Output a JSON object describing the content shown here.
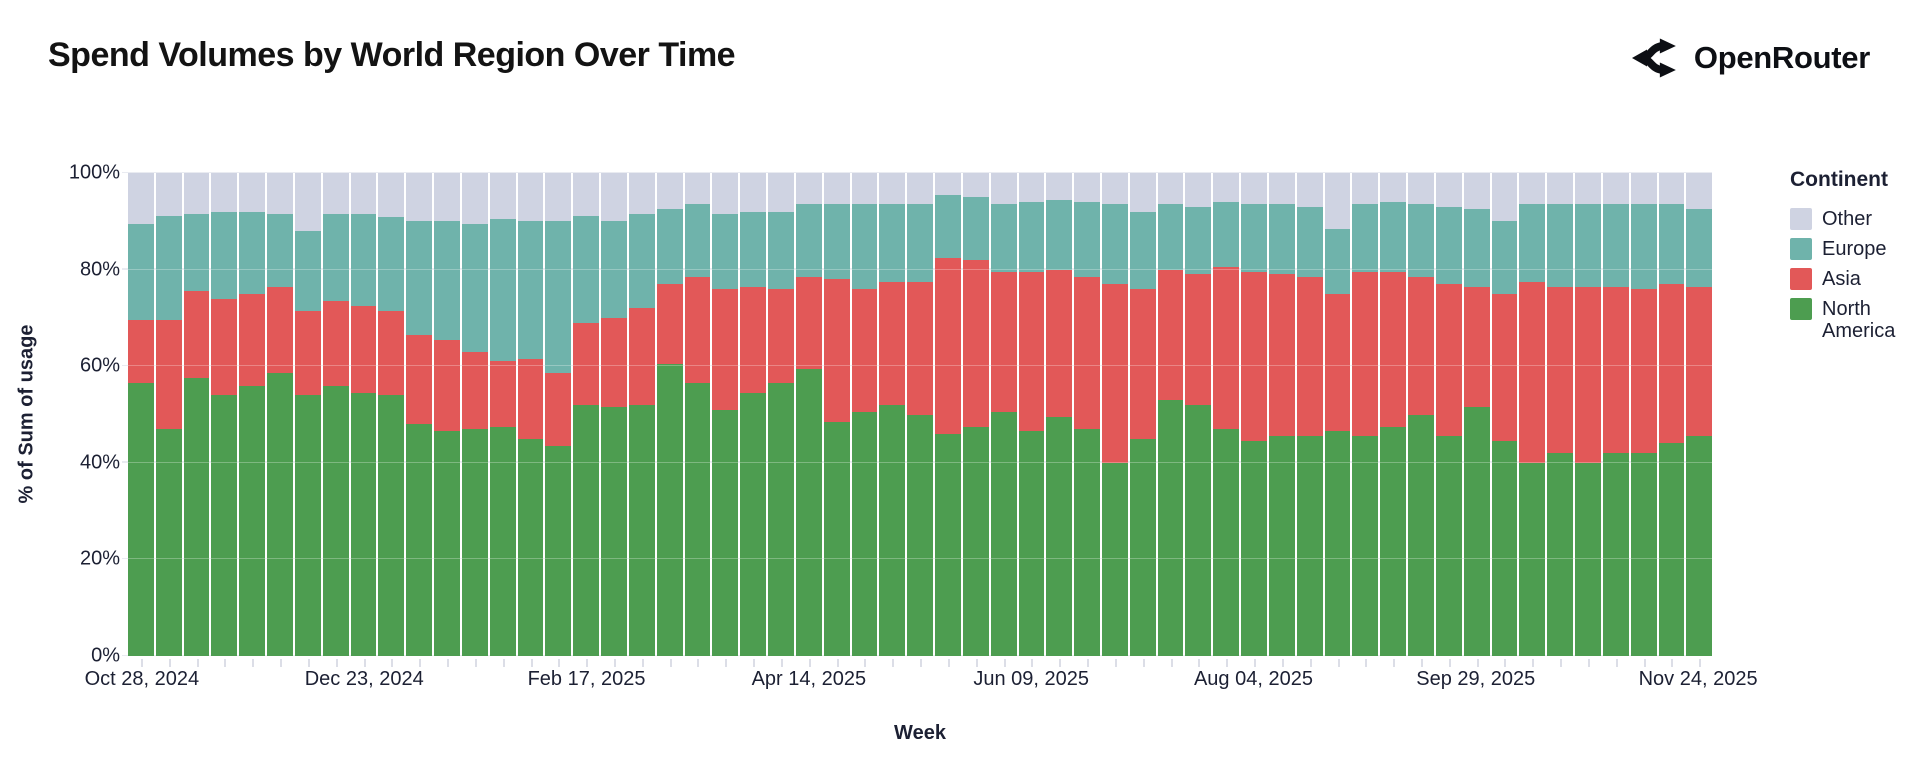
{
  "header": {
    "title": "Spend Volumes by World Region Over Time",
    "brand": "OpenRouter"
  },
  "chart_data": {
    "type": "bar",
    "stacked": true,
    "normalized_percent": true,
    "title": "Spend Volumes by World Region Over Time",
    "xlabel": "Week",
    "ylabel": "% of Sum of usage",
    "ylim": [
      0,
      100
    ],
    "grid": true,
    "y_ticks": [
      "0%",
      "20%",
      "40%",
      "60%",
      "80%",
      "100%"
    ],
    "x_tick_indices": [
      0,
      8,
      16,
      24,
      32,
      40,
      48,
      56
    ],
    "x_tick_labels": [
      "Oct 28, 2024",
      "Dec 23, 2024",
      "Feb 17, 2025",
      "Apr 14, 2025",
      "Jun 09, 2025",
      "Aug 04, 2025",
      "Sep 29, 2025",
      "Nov 24, 2025"
    ],
    "categories": [
      "Oct 28, 2024",
      "Nov 04, 2024",
      "Nov 11, 2024",
      "Nov 18, 2024",
      "Nov 25, 2024",
      "Dec 02, 2024",
      "Dec 09, 2024",
      "Dec 16, 2024",
      "Dec 23, 2024",
      "Dec 30, 2024",
      "Jan 06, 2025",
      "Jan 13, 2025",
      "Jan 20, 2025",
      "Jan 27, 2025",
      "Feb 03, 2025",
      "Feb 10, 2025",
      "Feb 17, 2025",
      "Feb 24, 2025",
      "Mar 03, 2025",
      "Mar 10, 2025",
      "Mar 17, 2025",
      "Mar 24, 2025",
      "Mar 31, 2025",
      "Apr 07, 2025",
      "Apr 14, 2025",
      "Apr 21, 2025",
      "Apr 28, 2025",
      "May 05, 2025",
      "May 12, 2025",
      "May 19, 2025",
      "May 26, 2025",
      "Jun 02, 2025",
      "Jun 09, 2025",
      "Jun 16, 2025",
      "Jun 23, 2025",
      "Jun 30, 2025",
      "Jul 07, 2025",
      "Jul 14, 2025",
      "Jul 21, 2025",
      "Jul 28, 2025",
      "Aug 04, 2025",
      "Aug 11, 2025",
      "Aug 18, 2025",
      "Aug 25, 2025",
      "Sep 01, 2025",
      "Sep 08, 2025",
      "Sep 15, 2025",
      "Sep 22, 2025",
      "Sep 29, 2025",
      "Oct 06, 2025",
      "Oct 13, 2025",
      "Oct 20, 2025",
      "Oct 27, 2025",
      "Nov 03, 2025",
      "Nov 10, 2025",
      "Nov 17, 2025",
      "Nov 24, 2025"
    ],
    "series": [
      {
        "name": "North America",
        "color": "#4d9d50",
        "values": [
          56.5,
          47,
          57.5,
          54,
          56,
          58.5,
          54,
          56,
          54.5,
          54,
          48,
          46.5,
          47,
          47.5,
          45,
          43.5,
          52,
          51.5,
          52,
          60.5,
          56.5,
          51,
          54.5,
          56.5,
          59.5,
          48.5,
          50.5,
          52,
          50,
          46,
          47.5,
          50.5,
          46.5,
          49.5,
          47,
          40,
          45,
          53,
          52,
          47,
          44.5,
          45.5,
          45.5,
          46.5,
          45.5,
          47.5,
          50,
          45.5,
          51.5,
          44.5,
          40,
          42,
          40,
          42,
          42,
          44,
          45.5
        ]
      },
      {
        "name": "Asia",
        "color": "#e25858",
        "values": [
          13,
          22.5,
          18,
          20,
          19,
          18,
          17.5,
          17.5,
          18,
          17.5,
          18.5,
          19,
          16,
          13.5,
          16.5,
          15,
          17,
          18.5,
          20,
          16.5,
          22,
          25,
          22,
          19.5,
          19,
          29.5,
          25.5,
          25.5,
          27.5,
          36.5,
          34.5,
          29,
          33,
          30.5,
          31.5,
          37,
          31,
          27,
          27,
          33.5,
          35,
          33.5,
          33,
          28.5,
          34,
          32,
          28.5,
          31.5,
          25,
          30.5,
          37.5,
          34.5,
          36.5,
          34.5,
          34,
          33,
          31
        ]
      },
      {
        "name": "Europe",
        "color": "#6fb3ab",
        "values": [
          20,
          21.5,
          16,
          18,
          17,
          15,
          16.5,
          18,
          19,
          19.5,
          23.5,
          24.5,
          26.5,
          29.5,
          28.5,
          31.5,
          22,
          20,
          19.5,
          15.5,
          15,
          15.5,
          15.5,
          16,
          15,
          15.5,
          17.5,
          16,
          16,
          13,
          13,
          14,
          14.5,
          14.5,
          15.5,
          16.5,
          16,
          13.5,
          14,
          13.5,
          14,
          14.5,
          14.5,
          13.5,
          14,
          14.5,
          15,
          16,
          16,
          15,
          16,
          17,
          17,
          17,
          17.5,
          16.5,
          16
        ]
      },
      {
        "name": "Other",
        "color": "#cfd3e2",
        "values": [
          10.5,
          9,
          8.5,
          8,
          8,
          8.5,
          12,
          8.5,
          8.5,
          9,
          10,
          10,
          10.5,
          9.5,
          10,
          10,
          9,
          10,
          8.5,
          7.5,
          6.5,
          8.5,
          8,
          8,
          6.5,
          6.5,
          6.5,
          6.5,
          6.5,
          4.5,
          5,
          6.5,
          6,
          5.5,
          6,
          6.5,
          8,
          6.5,
          7,
          6,
          6.5,
          6.5,
          7,
          11.5,
          6.5,
          6,
          6.5,
          7,
          7.5,
          10,
          6.5,
          6.5,
          6.5,
          6.5,
          6.5,
          6.5,
          7.5
        ]
      }
    ],
    "legend": {
      "title": "Continent",
      "position": "right",
      "entries": [
        "Other",
        "Europe",
        "Asia",
        "North America"
      ]
    }
  }
}
